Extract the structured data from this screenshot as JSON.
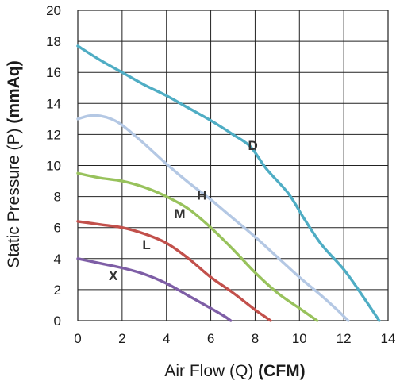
{
  "chart_data": {
    "type": "line",
    "title": "",
    "xlabel_text": "Air Flow (Q) ",
    "xlabel_unit": "(CFM)",
    "ylabel_text": "Static Pressure (P) ",
    "ylabel_unit": "(mmAq)",
    "xlim": [
      0,
      14
    ],
    "ylim": [
      0,
      20
    ],
    "xticks": [
      0,
      2,
      4,
      6,
      8,
      10,
      12,
      14
    ],
    "yticks": [
      0,
      2,
      4,
      6,
      8,
      10,
      12,
      14,
      16,
      18,
      20
    ],
    "grid": true,
    "series": [
      {
        "name": "D",
        "color": "#4fadc4",
        "label_at": [
          7.9,
          11.0
        ],
        "points": [
          [
            0,
            17.7
          ],
          [
            1,
            16.8
          ],
          [
            2,
            16.0
          ],
          [
            3,
            15.2
          ],
          [
            4,
            14.5
          ],
          [
            5,
            13.7
          ],
          [
            6,
            12.9
          ],
          [
            7,
            12.0
          ],
          [
            7.8,
            11.2
          ],
          [
            8.5,
            9.8
          ],
          [
            9.5,
            8.2
          ],
          [
            10.2,
            6.6
          ],
          [
            11,
            4.9
          ],
          [
            12,
            3.3
          ],
          [
            12.8,
            1.7
          ],
          [
            13.6,
            0
          ]
        ]
      },
      {
        "name": "H",
        "color": "#b4c8e4",
        "label_at": [
          5.6,
          7.8
        ],
        "points": [
          [
            0,
            13.0
          ],
          [
            0.5,
            13.2
          ],
          [
            1,
            13.2
          ],
          [
            1.5,
            13.0
          ],
          [
            2,
            12.6
          ],
          [
            3,
            11.4
          ],
          [
            4,
            10.1
          ],
          [
            5,
            8.9
          ],
          [
            6,
            7.8
          ],
          [
            7,
            6.6
          ],
          [
            8,
            5.4
          ],
          [
            9,
            4.1
          ],
          [
            10,
            2.8
          ],
          [
            11,
            1.6
          ],
          [
            11.7,
            0.7
          ],
          [
            12.2,
            0
          ]
        ]
      },
      {
        "name": "M",
        "color": "#98c25c",
        "label_at": [
          4.6,
          6.6
        ],
        "points": [
          [
            0,
            9.5
          ],
          [
            1,
            9.2
          ],
          [
            2,
            9.0
          ],
          [
            3,
            8.6
          ],
          [
            4,
            8.0
          ],
          [
            5,
            7.2
          ],
          [
            6,
            6.0
          ],
          [
            7,
            4.6
          ],
          [
            8,
            3.1
          ],
          [
            9,
            1.8
          ],
          [
            10,
            0.8
          ],
          [
            10.5,
            0.3
          ],
          [
            10.8,
            0
          ]
        ]
      },
      {
        "name": "L",
        "color": "#c2504b",
        "label_at": [
          3.1,
          4.6
        ],
        "points": [
          [
            0,
            6.4
          ],
          [
            1,
            6.2
          ],
          [
            2,
            6.0
          ],
          [
            3,
            5.6
          ],
          [
            4,
            5.0
          ],
          [
            5,
            4.0
          ],
          [
            6,
            2.8
          ],
          [
            7,
            1.8
          ],
          [
            8,
            0.7
          ],
          [
            8.4,
            0.3
          ],
          [
            8.7,
            0
          ]
        ]
      },
      {
        "name": "X",
        "color": "#7e5ea6",
        "label_at": [
          1.6,
          2.6
        ],
        "points": [
          [
            0,
            4.0
          ],
          [
            1,
            3.7
          ],
          [
            2,
            3.4
          ],
          [
            3,
            3.0
          ],
          [
            4,
            2.4
          ],
          [
            5,
            1.6
          ],
          [
            6,
            0.8
          ],
          [
            6.6,
            0.3
          ],
          [
            6.9,
            0
          ]
        ]
      }
    ]
  }
}
